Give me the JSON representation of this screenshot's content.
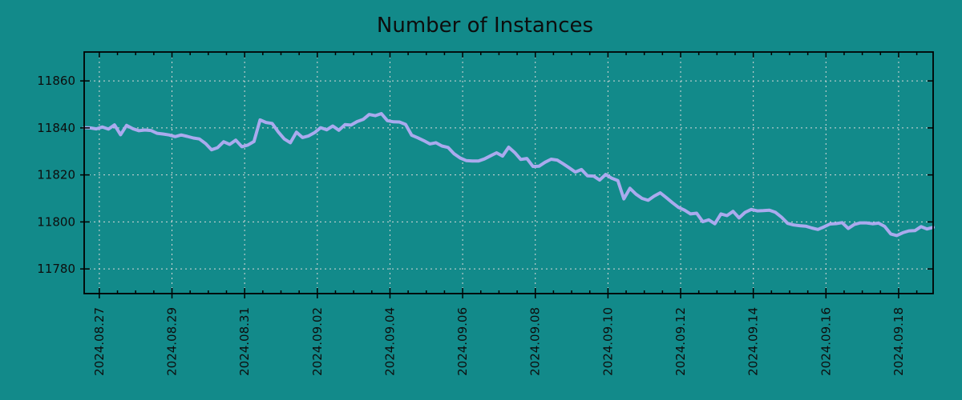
{
  "chart_data": {
    "type": "line",
    "title": "Number of Instances",
    "xlabel": "",
    "ylabel": "",
    "legend": null,
    "grid": true,
    "background_color": "#128a8a",
    "line_color": "#aaaaee",
    "grid_color": "#d9d9d9",
    "axis_color": "#000000",
    "text_color": "#0d0d0d",
    "x_tick_labels": [
      "2024.08.27",
      "2024.08.29",
      "2024.08.31",
      "2024.09.02",
      "2024.09.04",
      "2024.09.06",
      "2024.09.08",
      "2024.09.10",
      "2024.09.12",
      "2024.09.14",
      "2024.09.16",
      "2024.09.18"
    ],
    "x_tick_days": [
      0,
      2,
      4,
      6,
      8,
      10,
      12,
      14,
      16,
      18,
      20,
      22
    ],
    "x_minor_step_days": 0.5,
    "x_range_days": [
      -0.4167,
      22.95
    ],
    "x_start_label": "2024.08.26 ~14:00",
    "sample_interval_hours": 4,
    "ylim": [
      11769.5,
      11872.3
    ],
    "yticks": [
      11780,
      11800,
      11820,
      11840,
      11860
    ],
    "values": [
      11840.1,
      11840.0,
      11839.6,
      11840.4,
      11839.5,
      11841.3,
      11837.1,
      11841.1,
      11839.7,
      11838.8,
      11839.1,
      11838.9,
      11837.7,
      11837.4,
      11837.0,
      11836.3,
      11837.0,
      11836.4,
      11835.7,
      11835.3,
      11833.4,
      11830.7,
      11831.6,
      11834.1,
      11833.0,
      11834.8,
      11832.0,
      11832.7,
      11834.2,
      11843.4,
      11842.3,
      11841.9,
      11838.3,
      11835.3,
      11833.7,
      11838.2,
      11835.9,
      11836.6,
      11838.0,
      11840.1,
      11839.2,
      11840.8,
      11839.0,
      11841.4,
      11841.2,
      11842.7,
      11843.6,
      11845.7,
      11845.2,
      11846.1,
      11843.1,
      11842.6,
      11842.5,
      11841.5,
      11836.9,
      11835.8,
      11834.6,
      11833.2,
      11833.7,
      11832.3,
      11831.7,
      11829.0,
      11827.2,
      11826.1,
      11825.9,
      11825.9,
      11826.8,
      11828.1,
      11829.4,
      11828.0,
      11831.8,
      11829.5,
      11826.6,
      11827.0,
      11823.6,
      11823.7,
      11825.4,
      11826.7,
      11826.3,
      11824.7,
      11823.0,
      11821.2,
      11822.3,
      11819.6,
      11819.5,
      11817.8,
      11820.2,
      11818.6,
      11817.6,
      11809.8,
      11814.3,
      11811.8,
      11810.0,
      11809.2,
      11811.0,
      11812.4,
      11810.3,
      11808.2,
      11806.2,
      11805.0,
      11803.4,
      11803.7,
      11800.1,
      11800.9,
      11799.2,
      11803.4,
      11802.7,
      11804.5,
      11801.7,
      11804.1,
      11805.3,
      11804.7,
      11804.8,
      11805.0,
      11804.1,
      11802.0,
      11799.4,
      11798.7,
      11798.4,
      11798.2,
      11797.4,
      11796.8,
      11797.9,
      11799.1,
      11799.3,
      11799.7,
      11797.2,
      11798.9,
      11799.6,
      11799.6,
      11799.2,
      11799.5,
      11798.1,
      11794.9,
      11794.2,
      11795.4,
      11796.2,
      11796.3,
      11798.0,
      11797.0,
      11797.7
    ]
  }
}
